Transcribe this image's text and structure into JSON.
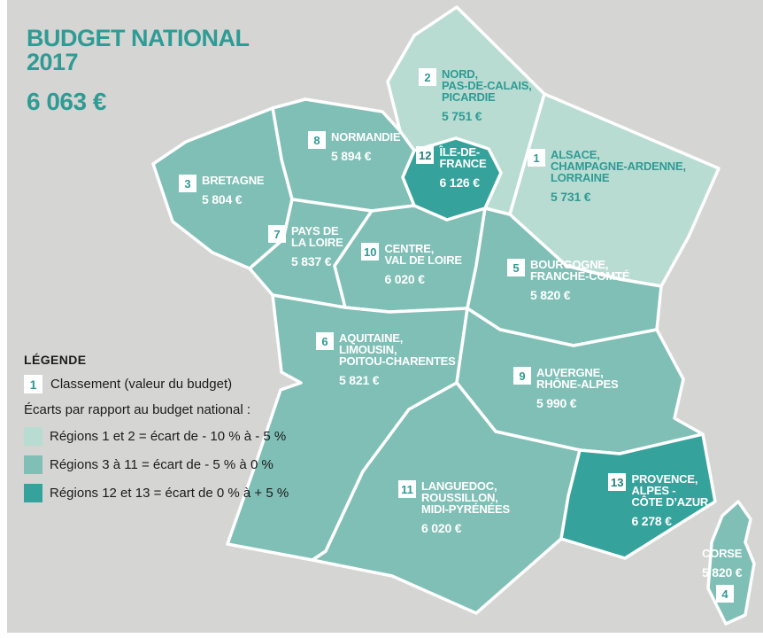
{
  "title": {
    "line1": "BUDGET NATIONAL",
    "line2": "2017",
    "amount": "6 063 €"
  },
  "legend": {
    "heading": "LÉGENDE",
    "rank_badge": "1",
    "rank_label": "Classement (valeur du budget)",
    "gaps_intro": "Écarts par rapport au budget national :",
    "classes": [
      {
        "swatch": "#b9dcd2",
        "label": "Régions 1 et 2  = écart de - 10 % à - 5 %"
      },
      {
        "swatch": "#7fbfb6",
        "label": "Régions 3 à 11 = écart de - 5 % à 0 %"
      },
      {
        "swatch": "#35a29b",
        "label": "Régions 12 et 13 = écart de 0 % à + 5 %"
      }
    ]
  },
  "palette": {
    "background": "#d5d5d3",
    "light": "#b9dcd2",
    "mid": "#7fbfb6",
    "dark": "#35a29b",
    "accent": "#2f9b95",
    "badge_dark": "#21807a",
    "border": "#ffffff",
    "label_on_fill": "#ffffff"
  },
  "regions": [
    {
      "key": "nord",
      "rank": "2",
      "name_lines": [
        "NORD,",
        "PAS-DE-CALAIS,",
        "PICARDIE"
      ],
      "value": "5 751 €",
      "class": "light"
    },
    {
      "key": "alsace",
      "rank": "1",
      "name_lines": [
        "ALSACE,",
        "CHAMPAGNE-ARDENNE,",
        "LORRAINE"
      ],
      "value": "5 731 €",
      "class": "light"
    },
    {
      "key": "idf",
      "rank": "12",
      "name_lines": [
        "ÎLE-DE-",
        "FRANCE"
      ],
      "value": "6 126 €",
      "class": "dark"
    },
    {
      "key": "normandie",
      "rank": "8",
      "name_lines": [
        "NORMANDIE"
      ],
      "value": "5 894 €",
      "class": "mid"
    },
    {
      "key": "bretagne",
      "rank": "3",
      "name_lines": [
        "BRETAGNE"
      ],
      "value": "5 804 €",
      "class": "mid"
    },
    {
      "key": "paysloire",
      "rank": "7",
      "name_lines": [
        "PAYS DE",
        "LA LOIRE"
      ],
      "value": "5 837 €",
      "class": "mid"
    },
    {
      "key": "centre",
      "rank": "10",
      "name_lines": [
        "CENTRE,",
        "VAL DE LOIRE"
      ],
      "value": "6 020 €",
      "class": "mid"
    },
    {
      "key": "bourgogne",
      "rank": "5",
      "name_lines": [
        "BOURGOGNE,",
        "FRANCHE-COMTÉ"
      ],
      "value": "5 820 €",
      "class": "mid"
    },
    {
      "key": "aquitaine",
      "rank": "6",
      "name_lines": [
        "AQUITAINE,",
        "LIMOUSIN,",
        "POITOU-CHARENTES"
      ],
      "value": "5 821 €",
      "class": "mid"
    },
    {
      "key": "auvergne",
      "rank": "9",
      "name_lines": [
        "AUVERGNE,",
        "RHÔNE-ALPES"
      ],
      "value": "5 990 €",
      "class": "mid"
    },
    {
      "key": "languedoc",
      "rank": "11",
      "name_lines": [
        "LANGUEDOC,",
        "ROUSSILLON,",
        "MIDI-PYRÉNÉES"
      ],
      "value": "6 020 €",
      "class": "mid"
    },
    {
      "key": "paca",
      "rank": "13",
      "name_lines": [
        "PROVENCE,",
        "ALPES -",
        "CÔTE D’AZUR"
      ],
      "value": "6 278 €",
      "class": "dark"
    },
    {
      "key": "corse",
      "rank": "4",
      "name_lines": [
        "CORSE"
      ],
      "value": "5 820 €",
      "class": "mid"
    }
  ]
}
